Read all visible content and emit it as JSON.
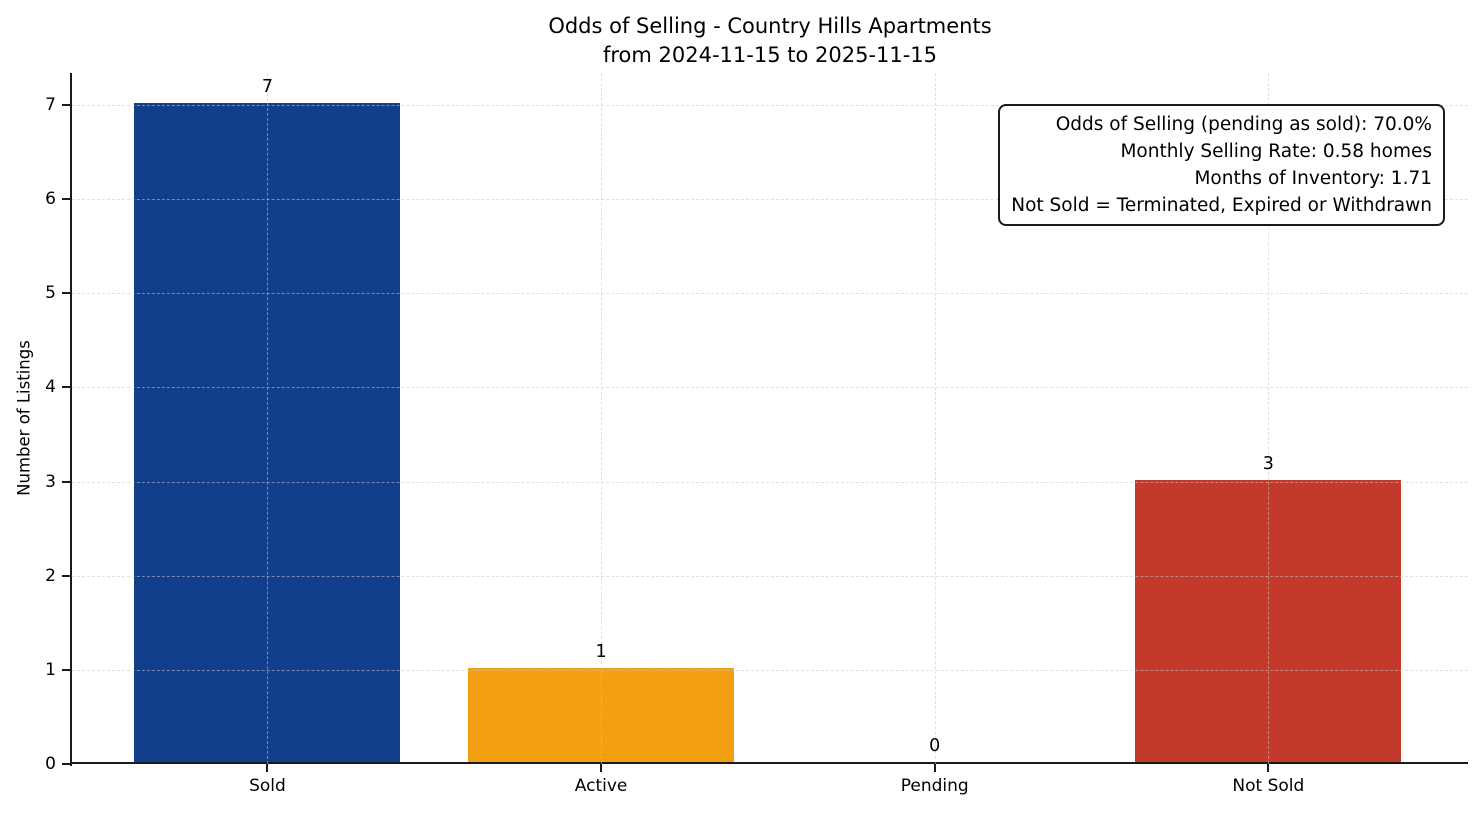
{
  "chart_data": {
    "type": "bar",
    "title": "Odds of Selling - Country Hills Apartments",
    "subtitle": "from 2024-11-15 to 2025-11-15",
    "xlabel": "",
    "ylabel": "Number of Listings",
    "categories": [
      "Sold",
      "Active",
      "Pending",
      "Not Sold"
    ],
    "values": [
      7,
      1,
      0,
      3
    ],
    "bar_value_labels": [
      "7",
      "1",
      "0",
      "3"
    ],
    "bar_colors": [
      "#123f8c",
      "#f29f11",
      null,
      "#c33a2a"
    ],
    "yticks": [
      0,
      1,
      2,
      3,
      4,
      5,
      6,
      7
    ],
    "ylim": [
      0,
      7.34
    ],
    "grid": {
      "horizontal": true,
      "vertical": true,
      "style": "dashed"
    },
    "legend": "none",
    "annotation_box": {
      "position": "top-right",
      "lines": [
        "Odds of Selling (pending as sold): 70.0%",
        "Monthly Selling Rate: 0.58 homes",
        "Months of Inventory: 1.71",
        "Not Sold = Terminated, Expired or Withdrawn"
      ]
    }
  },
  "colors": {
    "sold_bar": "#123f8c",
    "active_bar": "#f29f11",
    "not_sold_bar": "#c33a2a",
    "axis": "#1a1a1a",
    "grid": "#c9c9c9",
    "text": "#000000",
    "background": "#ffffff"
  }
}
